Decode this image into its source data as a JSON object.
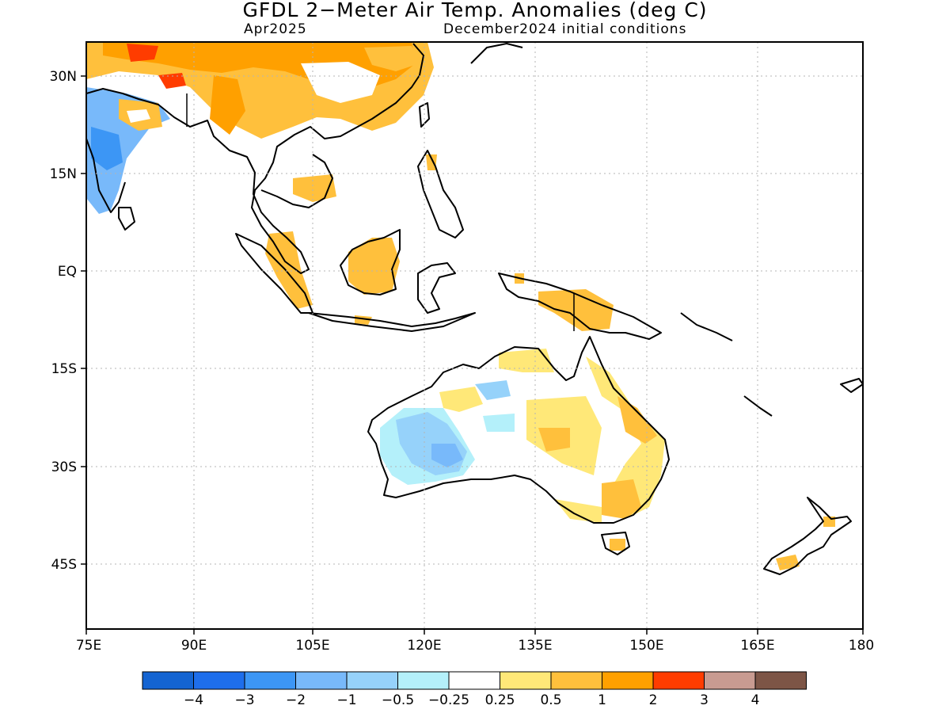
{
  "title": "GFDL 2−Meter Air Temp. Anomalies (deg C)",
  "valid_month": "Apr2025",
  "init_conditions": "December2024 initial conditions",
  "lat_labels": [
    "30N",
    "15N",
    "EQ",
    "15S",
    "30S",
    "45S"
  ],
  "lon_labels": [
    "75E",
    "90E",
    "105E",
    "120E",
    "135E",
    "150E",
    "165E",
    "180"
  ],
  "colorbar": {
    "colors": [
      "#1464d2",
      "#1e6eeb",
      "#3c96f5",
      "#78b9fa",
      "#96d2fa",
      "#b4f0fa",
      "#ffffff",
      "#ffe878",
      "#ffc03c",
      "#ffa000",
      "#ff3c00",
      "#c89b91",
      "#7d5546"
    ],
    "labels": [
      "−4",
      "−3",
      "−2",
      "−1",
      "−0.5",
      "−0.25",
      "0.25",
      "0.5",
      "1",
      "2",
      "3",
      "4"
    ]
  },
  "regions": {
    "positive_strong": "central Asia / Himalaya",
    "negative": "western and central Australia, western India"
  }
}
